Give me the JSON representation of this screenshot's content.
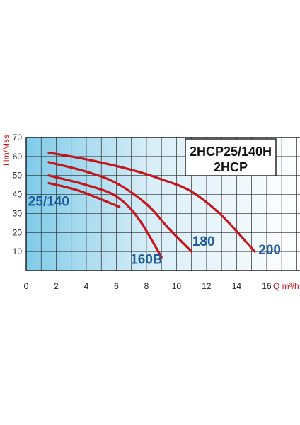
{
  "chart_data": {
    "type": "line",
    "xlabel": "Q m³/h",
    "ylabel": "Hm/Mss",
    "xlim": [
      0,
      18.5
    ],
    "ylim": [
      0,
      70
    ],
    "x_ticks": [
      "0",
      "2",
      "4",
      "6",
      "8",
      "10",
      "12",
      "14",
      "16"
    ],
    "y_ticks": [
      "10",
      "20",
      "30",
      "40",
      "50",
      "60",
      "70"
    ],
    "grid": true,
    "title_lines": [
      "2HCP25/140H",
      "2HCP"
    ],
    "series": [
      {
        "name": "200",
        "points": [
          [
            1.5,
            62
          ],
          [
            4,
            58.5
          ],
          [
            7,
            53
          ],
          [
            9,
            48
          ],
          [
            11,
            41.5
          ],
          [
            13,
            29
          ],
          [
            15.2,
            10
          ]
        ]
      },
      {
        "name": "180",
        "points": [
          [
            1.5,
            57
          ],
          [
            4,
            52
          ],
          [
            6,
            46
          ],
          [
            8,
            35
          ],
          [
            9.5,
            22
          ],
          [
            11,
            10
          ]
        ]
      },
      {
        "name": "160B",
        "points": [
          [
            1.5,
            50
          ],
          [
            4,
            45
          ],
          [
            6,
            39
          ],
          [
            7.5,
            27
          ],
          [
            9,
            7
          ]
        ]
      },
      {
        "name": "25/140",
        "points": [
          [
            1.5,
            46
          ],
          [
            3.5,
            42
          ],
          [
            6.2,
            33.5
          ]
        ]
      }
    ],
    "line_color": "#c4161c",
    "label_color": "#1f5b9a",
    "axis_label_color": "#c4161c"
  }
}
